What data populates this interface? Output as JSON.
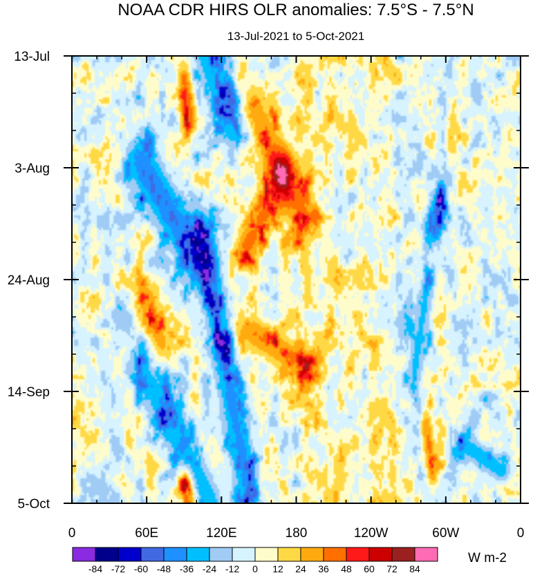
{
  "chart_data": {
    "type": "heatmap",
    "title": "NOAA CDR HIRS OLR anomalies: 7.5°S - 7.5°N",
    "subtitle": "13-Jul-2021 to 5-Oct-2021",
    "x_axis": {
      "ticks": [
        {
          "lon": 0,
          "label": "0"
        },
        {
          "lon": 60,
          "label": "60E"
        },
        {
          "lon": 120,
          "label": "120E"
        },
        {
          "lon": 180,
          "label": "180"
        },
        {
          "lon": 240,
          "label": "120W"
        },
        {
          "lon": 300,
          "label": "60W"
        },
        {
          "lon": 360,
          "label": "0"
        }
      ],
      "range": [
        0,
        360
      ]
    },
    "y_axis": {
      "ticks": [
        {
          "day": 0,
          "label": "13-Jul"
        },
        {
          "day": 21,
          "label": "3-Aug"
        },
        {
          "day": 42,
          "label": "24-Aug"
        },
        {
          "day": 63,
          "label": "14-Sep"
        },
        {
          "day": 84,
          "label": "5-Oct"
        }
      ],
      "range": [
        0,
        84
      ],
      "direction": "top-to-bottom"
    },
    "colorbar": {
      "unit_label": "W m-2",
      "levels": [
        "-84",
        "-72",
        "-60",
        "-48",
        "-36",
        "-24",
        "-12",
        "0",
        "12",
        "24",
        "36",
        "48",
        "60",
        "72",
        "84"
      ],
      "colors": [
        "#8a2be2",
        "#00008b",
        "#0000cd",
        "#4169e1",
        "#1e90ff",
        "#00bfff",
        "#9fcbf5",
        "#d6f3ff",
        "#fffccc",
        "#ffd945",
        "#ffab10",
        "#ff7000",
        "#ff1a1a",
        "#cc0000",
        "#9b2020",
        "#ff6bb4"
      ]
    },
    "features": [
      {
        "type": "cold",
        "lon0": 110,
        "day0": 0,
        "lon1": 130,
        "day1": 14,
        "value": -45,
        "wx": 16,
        "wy": 4
      },
      {
        "type": "cold",
        "lon0": 55,
        "day0": 20,
        "lon1": 100,
        "day1": 38,
        "value": -55,
        "wx": 14,
        "wy": 6
      },
      {
        "type": "cold",
        "lon0": 105,
        "day0": 34,
        "lon1": 140,
        "day1": 80,
        "value": -50,
        "wx": 12,
        "wy": 6
      },
      {
        "type": "cold",
        "lon0": 55,
        "day0": 58,
        "lon1": 110,
        "day1": 84,
        "value": -42,
        "wx": 13,
        "wy": 5
      },
      {
        "type": "cold",
        "lon0": 295,
        "day0": 28,
        "lon1": 290,
        "day1": 32,
        "value": -55,
        "wx": 9,
        "wy": 4
      },
      {
        "type": "cold",
        "lon0": 285,
        "day0": 44,
        "lon1": 275,
        "day1": 60,
        "value": -35,
        "wx": 8,
        "wy": 6
      },
      {
        "type": "cold",
        "lon0": 315,
        "day0": 73,
        "lon1": 345,
        "day1": 78,
        "value": -40,
        "wx": 10,
        "wy": 3
      },
      {
        "type": "warm",
        "lon0": 90,
        "day0": 4,
        "lon1": 95,
        "day1": 12,
        "value": 50,
        "wx": 7,
        "wy": 3
      },
      {
        "type": "warm",
        "lon0": 145,
        "day0": 10,
        "lon1": 185,
        "day1": 30,
        "value": 45,
        "wx": 14,
        "wy": 6
      },
      {
        "type": "warm",
        "lon0": 170,
        "day0": 22,
        "lon1": 140,
        "day1": 36,
        "value": 48,
        "wx": 12,
        "wy": 5
      },
      {
        "type": "warm",
        "lon0": 60,
        "day0": 46,
        "lon1": 70,
        "day1": 54,
        "value": 40,
        "wx": 13,
        "wy": 5
      },
      {
        "type": "warm",
        "lon0": 145,
        "day0": 52,
        "lon1": 185,
        "day1": 58,
        "value": 45,
        "wx": 14,
        "wy": 4
      },
      {
        "type": "warm",
        "lon0": 90,
        "day0": 80,
        "lon1": 95,
        "day1": 84,
        "value": 55,
        "wx": 7,
        "wy": 3
      },
      {
        "type": "warm",
        "lon0": 285,
        "day0": 70,
        "lon1": 290,
        "day1": 78,
        "value": 45,
        "wx": 6,
        "wy": 4
      }
    ]
  }
}
